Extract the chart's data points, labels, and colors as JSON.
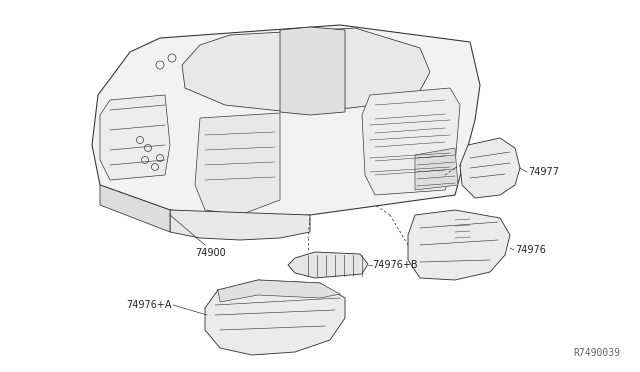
{
  "background_color": "#ffffff",
  "line_color": "#333333",
  "fig_width": 6.4,
  "fig_height": 3.72,
  "dpi": 100,
  "watermark": "R7490039",
  "watermark_color": "#666666",
  "label_fontsize": 7.0,
  "label_color": "#222222"
}
